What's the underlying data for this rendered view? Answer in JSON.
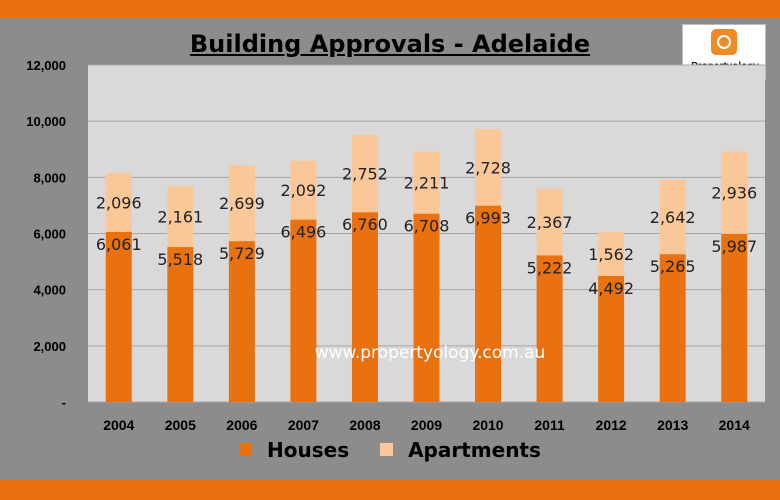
{
  "chart_data": {
    "type": "bar",
    "stacked": true,
    "title": "Building Approvals - Adelaide",
    "categories": [
      "2004",
      "2005",
      "2006",
      "2007",
      "2008",
      "2009",
      "2010",
      "2011",
      "2012",
      "2013",
      "2014"
    ],
    "series": [
      {
        "name": "Houses",
        "color": "#e9710f",
        "values": [
          6061,
          5518,
          5729,
          6496,
          6760,
          6708,
          6993,
          5222,
          4492,
          5265,
          5987
        ]
      },
      {
        "name": "Apartments",
        "color": "#fac898",
        "values": [
          2096,
          2161,
          2699,
          2092,
          2752,
          2211,
          2728,
          2367,
          1562,
          2642,
          2936
        ]
      }
    ],
    "data_labels": [
      [
        "6,061",
        "5,518",
        "5,729",
        "6,496",
        "6,760",
        "6,708",
        "6,993",
        "5,222",
        "4,492",
        "5,265",
        "5,987"
      ],
      [
        "2,096",
        "2,161",
        "2,699",
        "2,092",
        "2,752",
        "2,211",
        "2,728",
        "2,367",
        "1,562",
        "2,642",
        "2,936"
      ]
    ],
    "ylim": [
      0,
      12000
    ],
    "yticks": [
      0,
      2000,
      4000,
      6000,
      8000,
      10000,
      12000
    ],
    "ytick_labels": [
      "-",
      "2,000",
      "4,000",
      "6,000",
      "8,000",
      "10,000",
      "12,000"
    ],
    "grid": true,
    "legend": "bottom"
  },
  "logo": {
    "name": "Propertyology"
  },
  "watermark": "www.propertyology.com.au"
}
